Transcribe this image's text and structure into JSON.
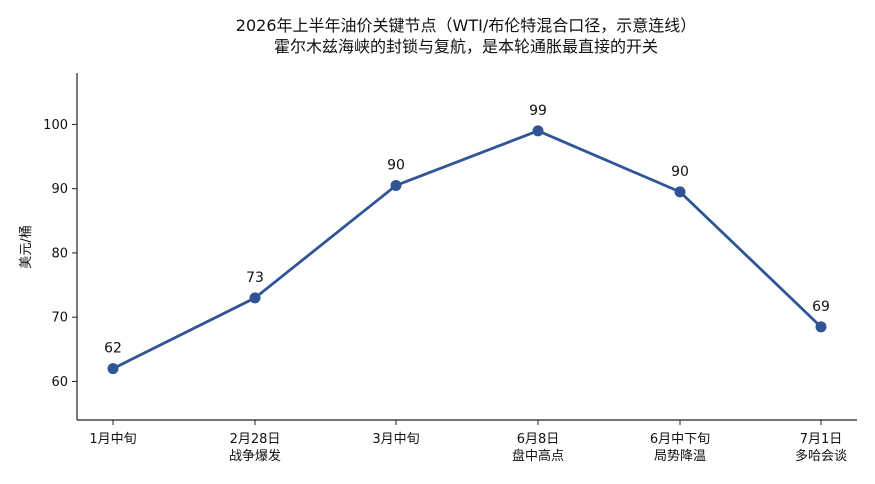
{
  "chart_data": {
    "type": "line",
    "title": [
      "2026年上半年油价关键节点（WTI/布伦特混合口径，示意连线）",
      "霍尔木兹海峡的封锁与复航，是本轮通胀最直接的开关"
    ],
    "ylabel": "美元/桶",
    "xlabel": "",
    "ylim": [
      54,
      108
    ],
    "yticks": [
      60,
      70,
      80,
      90,
      100
    ],
    "categories": [
      [
        "1月中旬"
      ],
      [
        "2月28日",
        "战争爆发"
      ],
      [
        "3月中旬"
      ],
      [
        "6月8日",
        "盘中高点"
      ],
      [
        "6月中下旬",
        "局势降温"
      ],
      [
        "7月1日",
        "多哈会谈"
      ]
    ],
    "series": [
      {
        "values": [
          62,
          73,
          90.5,
          99,
          89.5,
          68.5
        ],
        "labels": [
          "62",
          "73",
          "90",
          "99",
          "90",
          "69"
        ],
        "color": "#2f5597"
      }
    ],
    "grid": false,
    "legend": "none"
  }
}
